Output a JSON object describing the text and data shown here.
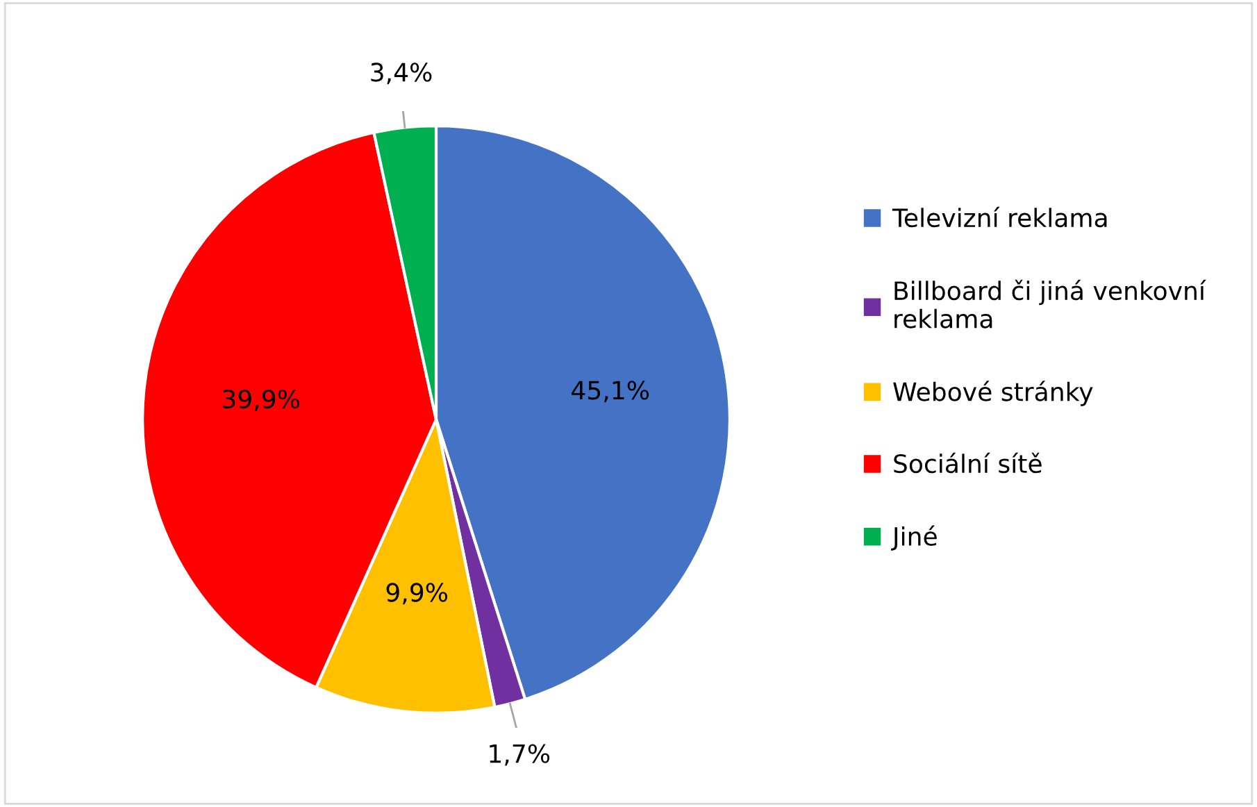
{
  "chart_data": {
    "type": "pie",
    "categories": [
      "Televizní reklama",
      "Billboard či jiná venkovní\nreklama",
      "Webové stránky",
      "Sociální sítě",
      "Jiné"
    ],
    "values": [
      45.1,
      1.7,
      9.9,
      39.9,
      3.4
    ],
    "value_labels": [
      "45,1%",
      "1,7%",
      "9,9%",
      "39,9%",
      "3,4%"
    ],
    "colors": [
      "#4472c4",
      "#7030a0",
      "#ffc000",
      "#ff0000",
      "#00b050"
    ],
    "legend": "right"
  }
}
